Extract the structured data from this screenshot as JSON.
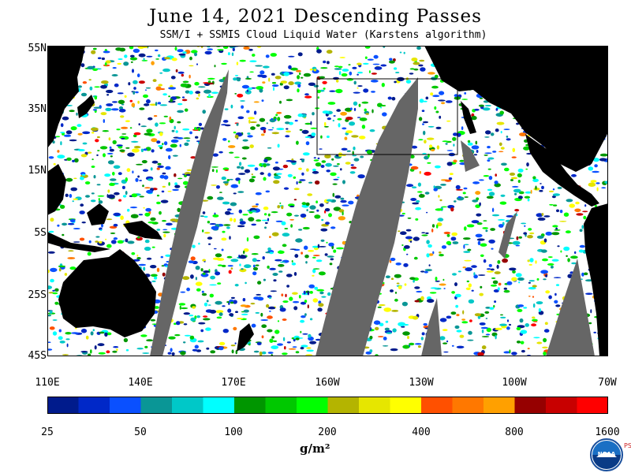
{
  "title": "June 14, 2021  Descending Passes",
  "subtitle": "SSM/I + SSMIS Cloud Liquid Water (Karstens algorithm)",
  "map": {
    "lat_labels": [
      "55N",
      "35N",
      "15N",
      "5S",
      "25S",
      "45S"
    ],
    "lon_labels": [
      "110E",
      "140E",
      "170E",
      "160W",
      "130W",
      "100W",
      "70W"
    ],
    "background_color": "#ffffff",
    "land_color": "#000000",
    "no_data_color": "#666666"
  },
  "colorbar": {
    "tick_labels": [
      "25",
      "50",
      "100",
      "200",
      "400",
      "800",
      "1600"
    ],
    "units": "g/m²",
    "colors": [
      "#001b8c",
      "#0028c8",
      "#0a50ff",
      "#0a9696",
      "#00c8c8",
      "#00ffff",
      "#009600",
      "#00c800",
      "#00ff00",
      "#b4b400",
      "#e6e600",
      "#ffff00",
      "#ff5000",
      "#ff7800",
      "#ffa000",
      "#960000",
      "#c80000",
      "#ff0000"
    ]
  },
  "logo": {
    "name": "noaa-logo",
    "text": "NOAA",
    "side_text": "PSL"
  }
}
